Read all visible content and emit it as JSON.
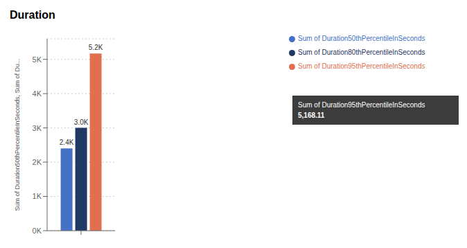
{
  "chart_data": {
    "type": "bar",
    "title": "Duration",
    "ylabel": "Sum of Duration50thPercentileInSeconds, Sum of Du...",
    "categories": [
      null
    ],
    "series": [
      {
        "name": "Sum of Duration50thPercentileInSeconds",
        "color": "#4472C4",
        "values": [
          2400
        ],
        "value_labels": [
          "2.4K"
        ]
      },
      {
        "name": "Sum of Duration80thPercentileInSeconds",
        "color": "#1F3864",
        "values": [
          3000
        ],
        "value_labels": [
          "3.0K"
        ]
      },
      {
        "name": "Sum of Duration95thPercentileInSeconds",
        "color": "#E07050",
        "values": [
          5168.11
        ],
        "value_labels": [
          "5.2K"
        ]
      }
    ],
    "ylim": [
      0,
      5600
    ],
    "yticks": [
      {
        "value": 0,
        "label": "0K"
      },
      {
        "value": 1000,
        "label": "1K"
      },
      {
        "value": 2000,
        "label": "2K"
      },
      {
        "value": 3000,
        "label": "3K"
      },
      {
        "value": 4000,
        "label": "4K"
      },
      {
        "value": 5000,
        "label": "5K"
      }
    ],
    "grid": true,
    "legend": "right",
    "data_labels": true,
    "annotations": [
      "Sum of Duration95thPercentileInSeconds",
      "5,168.11"
    ]
  }
}
